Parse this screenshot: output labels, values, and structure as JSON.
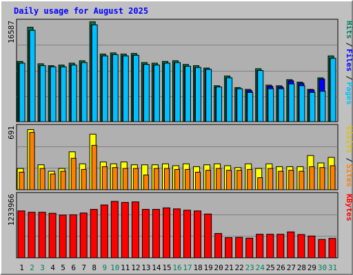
{
  "chart_data": {
    "type": "bar",
    "title": "Daily usage for August 2025",
    "panels": [
      {
        "id": "hits-files-pages",
        "max_label": "16587",
        "ylim": [
          0,
          16587
        ],
        "legend": [
          {
            "text": "Hits",
            "color": "#00805c"
          },
          {
            "text": "Files",
            "color": "#0000ff"
          },
          {
            "text": "Pages",
            "color": "#00c0ff"
          }
        ],
        "series": [
          {
            "name": "Hits",
            "color": "#008040",
            "values": [
              9900,
              15500,
              9500,
              9200,
              9300,
              9600,
              10000,
              16400,
              11100,
              11300,
              11100,
              11200,
              9700,
              9600,
              9900,
              10000,
              9400,
              9200,
              8800,
              5900,
              7500,
              5600,
              5300,
              8700,
              6000,
              5900,
              6900,
              6500,
              5300,
              7200,
              10800
            ]
          },
          {
            "name": "Files",
            "color": "#0000ff",
            "values": [
              9600,
              15000,
              9200,
              9000,
              9000,
              9300,
              9700,
              15900,
              10800,
              11000,
              10800,
              10900,
              9400,
              9300,
              9600,
              9700,
              9100,
              8900,
              8600,
              5700,
              7200,
              5400,
              5100,
              8400,
              5800,
              5700,
              6700,
              6300,
              5200,
              7000,
              10400
            ]
          },
          {
            "name": "Pages",
            "color": "#00c0ff",
            "values": [
              9600,
              15000,
              9200,
              9000,
              9000,
              9300,
              9700,
              15900,
              10800,
              11000,
              10800,
              10900,
              9400,
              9300,
              9600,
              9700,
              9100,
              8900,
              8600,
              5700,
              7200,
              5400,
              4800,
              8400,
              5400,
              5400,
              6200,
              5900,
              4800,
              5000,
              10400
            ]
          }
        ]
      },
      {
        "id": "visits-sites",
        "max_label": "691",
        "ylim": [
          0,
          691
        ],
        "legend": [
          {
            "text": "Visits",
            "color": "#e0c000"
          },
          {
            "text": "Sites",
            "color": "#ff8000"
          }
        ],
        "series": [
          {
            "name": "Visits",
            "color": "#ffff00",
            "values": [
              230,
              650,
              270,
              200,
              230,
              410,
              280,
              600,
              300,
              280,
              300,
              270,
              270,
              270,
              280,
              260,
              280,
              250,
              270,
              280,
              260,
              240,
              280,
              230,
              280,
              250,
              250,
              250,
              370,
              290,
              350
            ]
          },
          {
            "name": "Sites",
            "color": "#ff8000",
            "values": [
              190,
              620,
              230,
              170,
              200,
              340,
              220,
              480,
              250,
              240,
              230,
              230,
              160,
              230,
              230,
              220,
              220,
              190,
              210,
              230,
              210,
              210,
              220,
              130,
              230,
              200,
              210,
              200,
              250,
              240,
              260
            ]
          }
        ]
      },
      {
        "id": "kbytes",
        "max_label": "1233966",
        "ylim": [
          0,
          1233966
        ],
        "legend": [
          {
            "text": "KBytes",
            "color": "#ff0000"
          }
        ],
        "series": [
          {
            "name": "KBytes",
            "color": "#ff0000",
            "values": [
              905000,
              880000,
              880000,
              860000,
              825000,
              830000,
              865000,
              935000,
              1020000,
              1090000,
              1070000,
              1080000,
              935000,
              935000,
              965000,
              945000,
              920000,
              905000,
              845000,
              470000,
              390000,
              395000,
              380000,
              455000,
              455000,
              455000,
              500000,
              450000,
              420000,
              355000,
              375000
            ]
          }
        ]
      }
    ],
    "categories": [
      "1",
      "2",
      "3",
      "4",
      "5",
      "6",
      "7",
      "8",
      "9",
      "10",
      "11",
      "12",
      "13",
      "14",
      "15",
      "16",
      "17",
      "18",
      "19",
      "20",
      "21",
      "22",
      "23",
      "24",
      "25",
      "26",
      "27",
      "28",
      "29",
      "30",
      "31"
    ],
    "weekend_days": [
      "2",
      "3",
      "9",
      "10",
      "16",
      "17",
      "23",
      "24",
      "30",
      "31"
    ],
    "colors": {
      "background": "#c0c0c0",
      "plot_background": "#b0b0b0",
      "gridline": "#808080",
      "weekday_label": "#000000",
      "weekend_label": "#00805c"
    }
  }
}
